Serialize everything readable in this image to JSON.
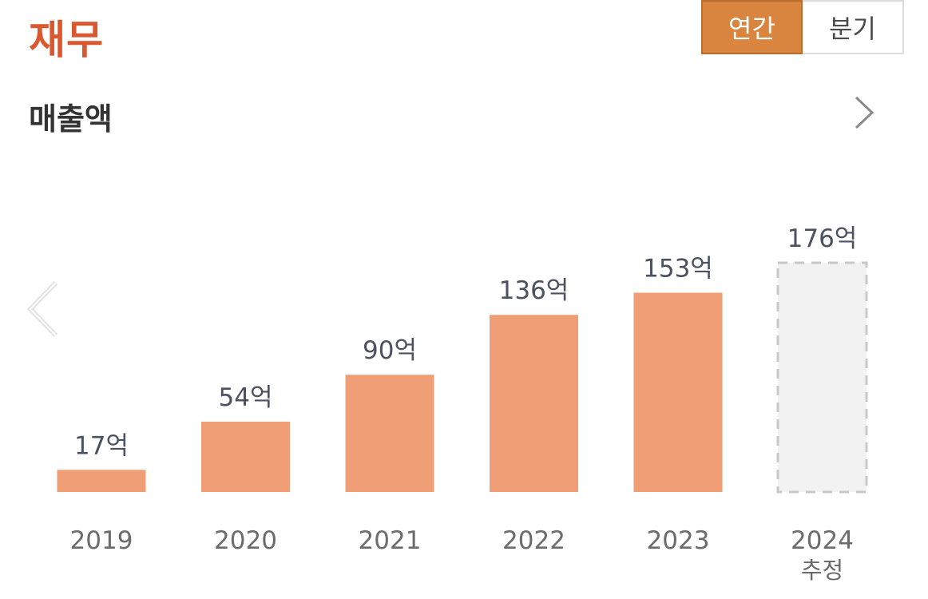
{
  "header": {
    "title": "재무"
  },
  "toggle": {
    "annual": "연간",
    "quarterly": "분기"
  },
  "section": {
    "title": "매출액"
  },
  "icons": {
    "next": "chevron-right-icon",
    "prev": "chevron-left-icon"
  },
  "colors": {
    "bar": "#f09e75",
    "estimate_fill": "#f2f2f2",
    "estimate_border": "#c8c8c8",
    "title": "#d9582f",
    "toggle_active": "#d9853f"
  },
  "chart_data": {
    "type": "bar",
    "title": "",
    "xlabel": "",
    "ylabel": "",
    "unit": "억",
    "categories": [
      "2019",
      "2020",
      "2021",
      "2022",
      "2023",
      "2024"
    ],
    "values": [
      17,
      54,
      90,
      136,
      153,
      176
    ],
    "value_labels": [
      "17억",
      "54억",
      "90억",
      "136억",
      "153억",
      "176억"
    ],
    "sub_labels": [
      "",
      "",
      "",
      "",
      "",
      "추정"
    ],
    "estimated": [
      false,
      false,
      false,
      false,
      false,
      true
    ],
    "ylim": [
      0,
      176
    ],
    "grid": false,
    "legend": "none"
  }
}
